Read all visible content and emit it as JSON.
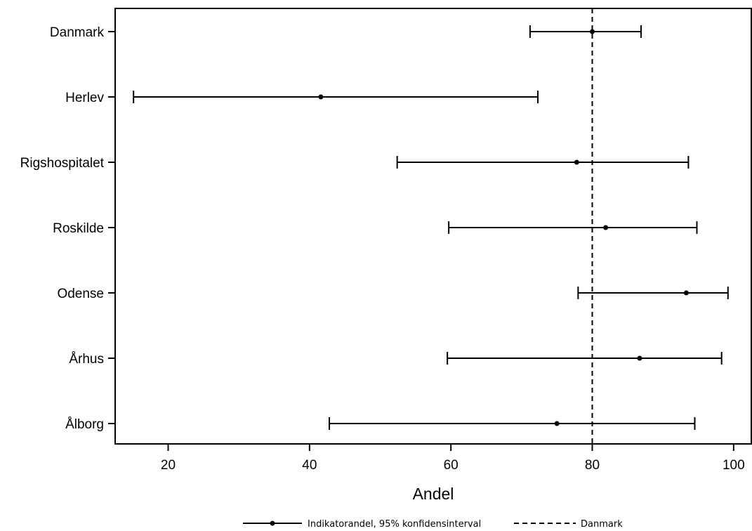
{
  "chart_data": {
    "type": "forest",
    "categories": [
      "Danmark",
      "Herlev",
      "Rigshospitalet",
      "Roskilde",
      "Odense",
      "Århus",
      "Ålborg"
    ],
    "estimates": [
      80,
      41.6,
      77.8,
      81.9,
      93.3,
      86.7,
      75.0
    ],
    "ci_lower": [
      71.2,
      15.1,
      52.4,
      59.7,
      78.0,
      59.5,
      42.8
    ],
    "ci_upper": [
      86.9,
      72.3,
      93.6,
      94.8,
      99.2,
      98.3,
      94.5
    ],
    "reference_line": {
      "value": 80,
      "style": "dashed",
      "name": "Danmark"
    },
    "xlabel": "Andel",
    "xlim": [
      12.5,
      102.5
    ],
    "x_ticks": [
      20,
      40,
      60,
      80,
      100
    ],
    "grid": false,
    "legend": {
      "placement": "bottom",
      "entries": [
        {
          "label": "Indikatorandel, 95% konfidensinterval",
          "style": "line-with-point"
        },
        {
          "label": "Danmark",
          "style": "dashed"
        }
      ]
    }
  }
}
